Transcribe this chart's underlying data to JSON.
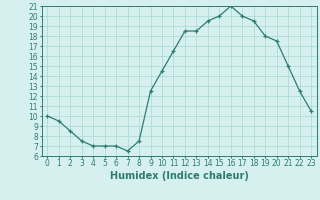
{
  "x": [
    0,
    1,
    2,
    3,
    4,
    5,
    6,
    7,
    8,
    9,
    10,
    11,
    12,
    13,
    14,
    15,
    16,
    17,
    18,
    19,
    20,
    21,
    22,
    23
  ],
  "y": [
    10,
    9.5,
    8.5,
    7.5,
    7,
    7,
    7,
    6.5,
    7.5,
    12.5,
    14.5,
    16.5,
    18.5,
    18.5,
    19.5,
    20,
    21,
    20,
    19.5,
    18,
    17.5,
    15,
    12.5,
    10.5
  ],
  "line_color": "#2d7d6e",
  "marker_color": "#2d7d6e",
  "bg_color": "#d6f0f0",
  "grid_color": "#a8d8d0",
  "xlabel": "Humidex (Indice chaleur)",
  "xlim": [
    -0.5,
    23.5
  ],
  "ylim": [
    6,
    21
  ],
  "yticks": [
    6,
    7,
    8,
    9,
    10,
    11,
    12,
    13,
    14,
    15,
    16,
    17,
    18,
    19,
    20,
    21
  ],
  "xticks": [
    0,
    1,
    2,
    3,
    4,
    5,
    6,
    7,
    8,
    9,
    10,
    11,
    12,
    13,
    14,
    15,
    16,
    17,
    18,
    19,
    20,
    21,
    22,
    23
  ],
  "tick_fontsize": 5.5,
  "label_fontsize": 7
}
